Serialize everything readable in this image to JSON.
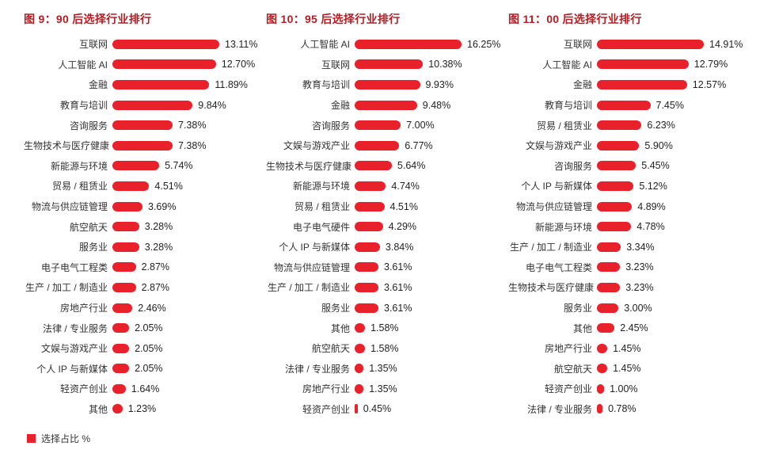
{
  "colors": {
    "bar_red": "#e8212a",
    "title_red": "#b21e23",
    "text": "#333333"
  },
  "legend": {
    "label": "选择占比 %",
    "color": "#e8212a",
    "position": "bottom-left"
  },
  "chart_data": [
    {
      "type": "bar",
      "orientation": "horizontal",
      "title": "图 9：90 后选择行业排行",
      "xlabel": "",
      "ylabel": "",
      "legend_entry": "选择占比 %",
      "bar_color": "#e8212a",
      "value_suffix": "%",
      "xlim": [
        0,
        16.25
      ],
      "grid": false,
      "categories": [
        "互联网",
        "人工智能 AI",
        "金融",
        "教育与培训",
        "咨询服务",
        "生物技术与医疗健康",
        "新能源与环境",
        "贸易 / 租赁业",
        "物流与供应链管理",
        "航空航天",
        "服务业",
        "电子电气工程类",
        "生产 / 加工 / 制造业",
        "房地产行业",
        "法律 / 专业服务",
        "文娱与游戏产业",
        "个人 IP 与新媒体",
        "轻资产创业",
        "其他"
      ],
      "values": [
        13.11,
        12.7,
        11.89,
        9.84,
        7.38,
        7.38,
        5.74,
        4.51,
        3.69,
        3.28,
        3.28,
        2.87,
        2.87,
        2.46,
        2.05,
        2.05,
        2.05,
        1.64,
        1.23
      ]
    },
    {
      "type": "bar",
      "orientation": "horizontal",
      "title": "图 10：95 后选择行业排行",
      "xlabel": "",
      "ylabel": "",
      "legend_entry": "选择占比 %",
      "bar_color": "#e8212a",
      "value_suffix": "%",
      "xlim": [
        0,
        16.25
      ],
      "grid": false,
      "categories": [
        "人工智能 AI",
        "互联网",
        "教育与培训",
        "金融",
        "咨询服务",
        "文娱与游戏产业",
        "生物技术与医疗健康",
        "新能源与环境",
        "贸易 / 租赁业",
        "电子电气硬件",
        "个人 IP 与新媒体",
        "物流与供应链管理",
        "生产 / 加工 / 制造业",
        "服务业",
        "其他",
        "航空航天",
        "法律 / 专业服务",
        "房地产行业",
        "轻资产创业"
      ],
      "values": [
        16.25,
        10.38,
        9.93,
        9.48,
        7.0,
        6.77,
        5.64,
        4.74,
        4.51,
        4.29,
        3.84,
        3.61,
        3.61,
        3.61,
        1.58,
        1.58,
        1.35,
        1.35,
        0.45
      ]
    },
    {
      "type": "bar",
      "orientation": "horizontal",
      "title": "图 11：00 后选择行业排行",
      "xlabel": "",
      "ylabel": "",
      "legend_entry": "选择占比 %",
      "bar_color": "#e8212a",
      "value_suffix": "%",
      "xlim": [
        0,
        16.25
      ],
      "grid": false,
      "categories": [
        "互联网",
        "人工智能 AI",
        "金融",
        "教育与培训",
        "贸易 / 租赁业",
        "文娱与游戏产业",
        "咨询服务",
        "个人 IP 与新媒体",
        "物流与供应链管理",
        "新能源与环境",
        "生产 / 加工 / 制造业",
        "电子电气工程类",
        "生物技术与医疗健康",
        "服务业",
        "其他",
        "房地产行业",
        "航空航天",
        "轻资产创业",
        "法律 / 专业服务"
      ],
      "values": [
        14.91,
        12.79,
        12.57,
        7.45,
        6.23,
        5.9,
        5.45,
        5.12,
        4.89,
        4.78,
        3.34,
        3.23,
        3.23,
        3.0,
        2.45,
        1.45,
        1.45,
        1.0,
        0.78
      ]
    }
  ]
}
